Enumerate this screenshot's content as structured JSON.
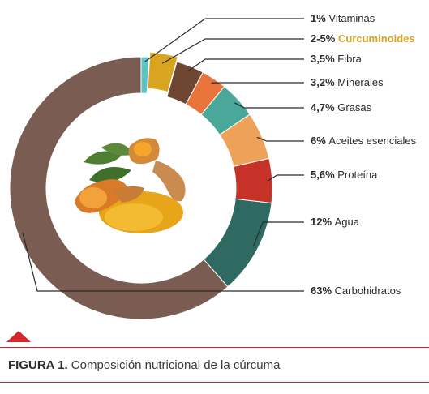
{
  "chart_data": {
    "type": "donut",
    "labels": [
      {
        "value_text": "1%",
        "name": "Vitaminas"
      },
      {
        "value_text": "2-5%",
        "name": "Curcuminoides"
      },
      {
        "value_text": "3,5%",
        "name": "Fibra"
      },
      {
        "value_text": "3,2%",
        "name": "Minerales"
      },
      {
        "value_text": "4,7%",
        "name": "Grasas"
      },
      {
        "value_text": "6%",
        "name": "Aceites esenciales"
      },
      {
        "value_text": "5,6%",
        "name": "Proteína"
      },
      {
        "value_text": "12%",
        "name": "Agua"
      },
      {
        "value_text": "63%",
        "name": "Carbohidratos"
      }
    ],
    "values": [
      1,
      3.5,
      3.5,
      3.2,
      4.7,
      6,
      5.6,
      12,
      63
    ],
    "colors": [
      "#5ec3c4",
      "#d9a520",
      "#6e4632",
      "#e8743b",
      "#4aa89a",
      "#eea158",
      "#c63227",
      "#2e6a61",
      "#7a5c52"
    ],
    "highlight": {
      "index": 1,
      "color": "#d9a520"
    }
  },
  "figure": {
    "label": "FIGURA 1.",
    "caption": "Composición nutricional de la cúrcuma"
  },
  "accent_color": "#c8262b"
}
